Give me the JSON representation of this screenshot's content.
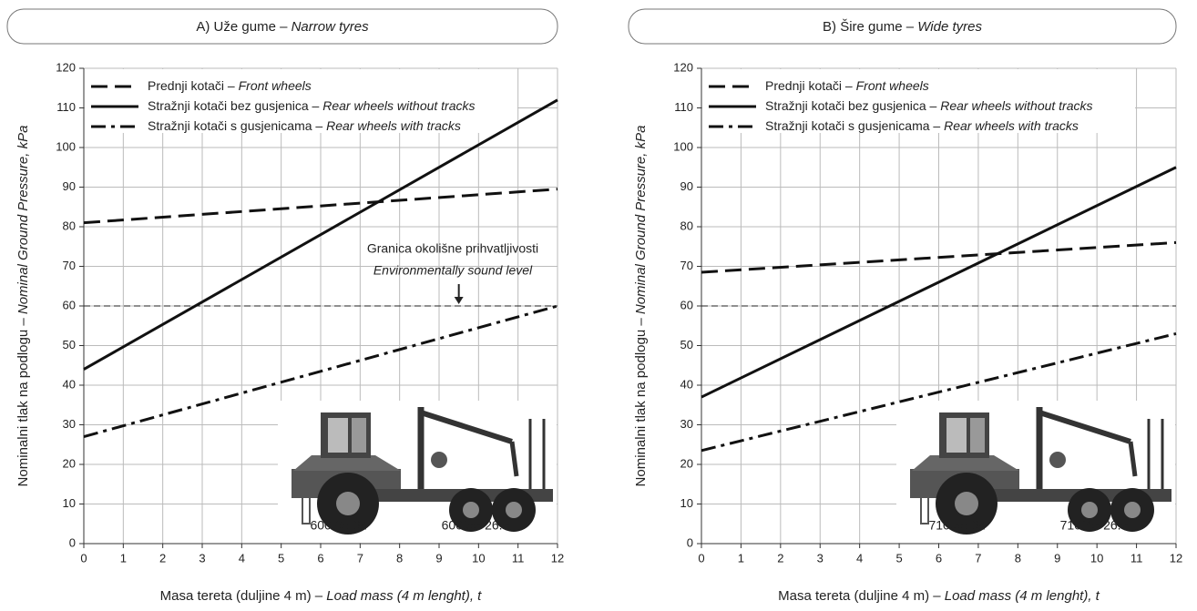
{
  "chart_data": [
    {
      "type": "line",
      "title": "A) Uže gume – Narrow tyres",
      "x_label": "Masa tereta (duljine 4 m) – Load mass (4 m lenght), t",
      "y_label": "Nominalni tlak na podlogu – Nominal Ground Pressure, kPa",
      "x": [
        0,
        12
      ],
      "series": [
        {
          "name": "Prednji kotači – Front wheels",
          "color": "#111",
          "dash": "dashed",
          "values": [
            81,
            89.5
          ]
        },
        {
          "name": "Stražnji kotači bez gusjenica – Rear wheels without tracks",
          "color": "#111",
          "dash": "solid",
          "values": [
            44,
            112
          ]
        },
        {
          "name": "Stražnji kotači s gusjenicama – Rear wheels with tracks",
          "color": "#111",
          "dash": "dashdot",
          "values": [
            27,
            60
          ]
        }
      ],
      "reference_line": 60,
      "annotation": [
        "Granica okolišne prihvatljivosti",
        "Environmentally sound level"
      ],
      "tyre_labels": [
        "600/65-34",
        "600/55-26.5"
      ],
      "xlim": [
        0,
        12
      ],
      "xticks": [
        0,
        1,
        2,
        3,
        4,
        5,
        6,
        7,
        8,
        9,
        10,
        11,
        12
      ],
      "ylim": [
        0,
        120
      ],
      "yticks": [
        0,
        10,
        20,
        30,
        40,
        50,
        60,
        70,
        80,
        90,
        100,
        110,
        120
      ],
      "grid": true,
      "legend": "upper left"
    },
    {
      "type": "line",
      "title": "B) Šire gume – Wide tyres",
      "x_label": "Masa tereta (duljine 4 m) – Load mass (4 m lenght), t",
      "y_label": "Nominalni tlak na podlogu – Nominal Ground Pressure, kPa",
      "x": [
        0,
        12
      ],
      "series": [
        {
          "name": "Prednji kotači – Front wheels",
          "color": "#111",
          "dash": "dashed",
          "values": [
            68.5,
            76
          ]
        },
        {
          "name": "Stražnji kotači bez gusjenica – Rear wheels without tracks",
          "color": "#111",
          "dash": "solid",
          "values": [
            37,
            95
          ]
        },
        {
          "name": "Stražnji kotači s gusjenicama – Rear wheels with tracks",
          "color": "#111",
          "dash": "dashdot",
          "values": [
            23.5,
            53
          ]
        }
      ],
      "reference_line": 60,
      "tyre_labels": [
        "710/55-34",
        "710/45-26.5"
      ],
      "xlim": [
        0,
        12
      ],
      "xticks": [
        0,
        1,
        2,
        3,
        4,
        5,
        6,
        7,
        8,
        9,
        10,
        11,
        12
      ],
      "ylim": [
        0,
        120
      ],
      "yticks": [
        0,
        10,
        20,
        30,
        40,
        50,
        60,
        70,
        80,
        90,
        100,
        110,
        120
      ],
      "grid": true,
      "legend": "upper left"
    }
  ]
}
